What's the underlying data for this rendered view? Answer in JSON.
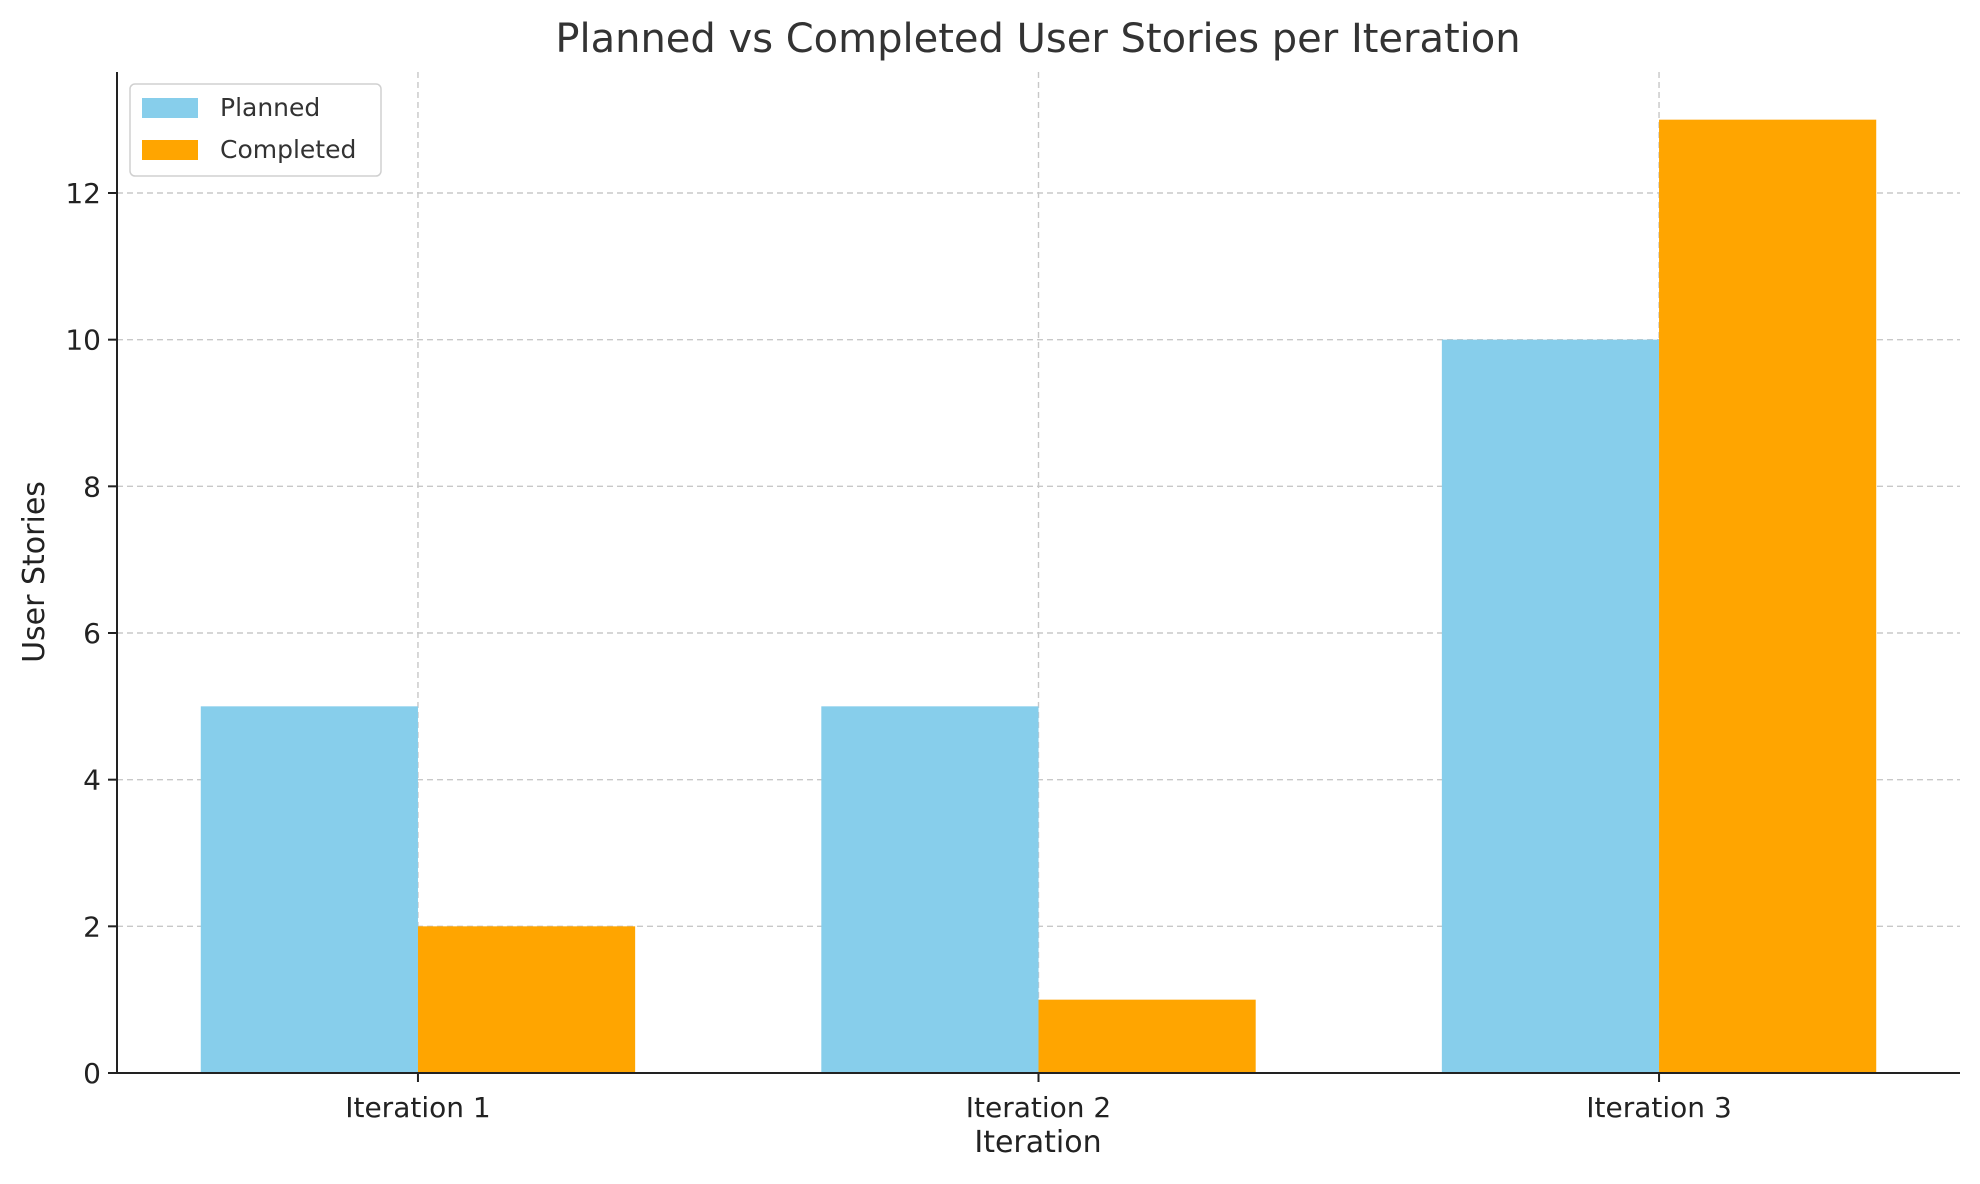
{
  "chart_data": {
    "type": "bar",
    "title": "Planned vs Completed User Stories per Iteration",
    "xlabel": "Iteration",
    "ylabel": "User Stories",
    "categories": [
      "Iteration 1",
      "Iteration 2",
      "Iteration 3"
    ],
    "series": [
      {
        "name": "Planned",
        "values": [
          5,
          5,
          10
        ],
        "color": "#87CEEB"
      },
      {
        "name": "Completed",
        "values": [
          2,
          1,
          13
        ],
        "color": "#FFA500"
      }
    ],
    "ylim": [
      0,
      13.65
    ],
    "yticks": [
      0,
      2,
      4,
      6,
      8,
      10,
      12
    ],
    "ytick_labels": [
      "0",
      "2",
      "4",
      "6",
      "8",
      "10",
      "12"
    ],
    "grid": true,
    "legend_position": "top-left"
  }
}
